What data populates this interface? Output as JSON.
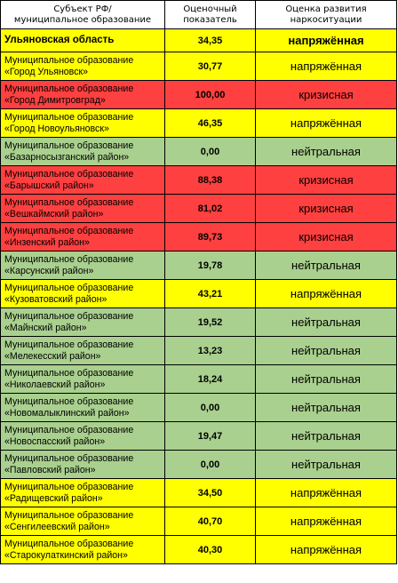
{
  "header": {
    "col1_line1": "Субъект РФ/",
    "col1_line2": "муниципальное образование",
    "col2_line1": "Оценочный",
    "col2_line2": "показатель",
    "col3_line1": "Оценка развития",
    "col3_line2": "наркоситуации"
  },
  "colors": {
    "tense": "#ffff00",
    "crisis": "#ff4040",
    "neutral": "#a9d08e"
  },
  "rows": [
    {
      "line1": "Ульяновская область",
      "line2": "",
      "score": "34,35",
      "rating": "напряжённая",
      "status": "tense"
    },
    {
      "line1": "Муниципальное образование",
      "line2": "«Город Ульяновск»",
      "score": "30,77",
      "rating": "напряжённая",
      "status": "tense"
    },
    {
      "line1": "Муниципальное образование",
      "line2": "«Город Димитровград»",
      "score": "100,00",
      "rating": "кризисная",
      "status": "crisis"
    },
    {
      "line1": "Муниципальное образование",
      "line2": "«Город Новоульяновск»",
      "score": "46,35",
      "rating": "напряжённая",
      "status": "tense"
    },
    {
      "line1": "Муниципальное образование",
      "line2": "«Базарносызганский район»",
      "score": "0,00",
      "rating": "нейтральная",
      "status": "neutral"
    },
    {
      "line1": "Муниципальное образование",
      "line2": "«Барышский район»",
      "score": "88,38",
      "rating": "кризисная",
      "status": "crisis"
    },
    {
      "line1": "Муниципальное образование",
      "line2": "«Вешкаймский район»",
      "score": "81,02",
      "rating": "кризисная",
      "status": "crisis"
    },
    {
      "line1": "Муниципальное образование",
      "line2": "«Инзенский район»",
      "score": "89,73",
      "rating": "кризисная",
      "status": "crisis"
    },
    {
      "line1": "Муниципальное образование",
      "line2": "«Карсунский район»",
      "score": "19,78",
      "rating": "нейтральная",
      "status": "neutral"
    },
    {
      "line1": "Муниципальное образование",
      "line2": "«Кузоватовский район»",
      "score": "43,21",
      "rating": "напряжённая",
      "status": "tense"
    },
    {
      "line1": "Муниципальное образование",
      "line2": "«Майнский район»",
      "score": "19,52",
      "rating": "нейтральная",
      "status": "neutral"
    },
    {
      "line1": "Муниципальное образование",
      "line2": "«Мелекесский район»",
      "score": "13,23",
      "rating": "нейтральная",
      "status": "neutral"
    },
    {
      "line1": "Муниципальное образование",
      "line2": "«Николаевский район»",
      "score": "18,24",
      "rating": "нейтральная",
      "status": "neutral"
    },
    {
      "line1": "Муниципальное образование",
      "line2": "«Новомалыклинский район»",
      "score": "0,00",
      "rating": "нейтральная",
      "status": "neutral"
    },
    {
      "line1": "Муниципальное образование",
      "line2": "«Новоспасский район»",
      "score": "19,47",
      "rating": "нейтральная",
      "status": "neutral"
    },
    {
      "line1": "Муниципальное образование",
      "line2": "«Павловский район»",
      "score": "0,00",
      "rating": "нейтральная",
      "status": "neutral"
    },
    {
      "line1": "Муниципальное образование",
      "line2": "«Радищевский район»",
      "score": "34,50",
      "rating": "напряжённая",
      "status": "tense"
    },
    {
      "line1": "Муниципальное образование",
      "line2": "«Сенгилеевский район»",
      "score": "40,70",
      "rating": "напряжённая",
      "status": "tense"
    },
    {
      "line1": "Муниципальное образование",
      "line2": "«Старокулаткинский район»",
      "score": "40,30",
      "rating": "напряжённая",
      "status": "tense"
    }
  ]
}
